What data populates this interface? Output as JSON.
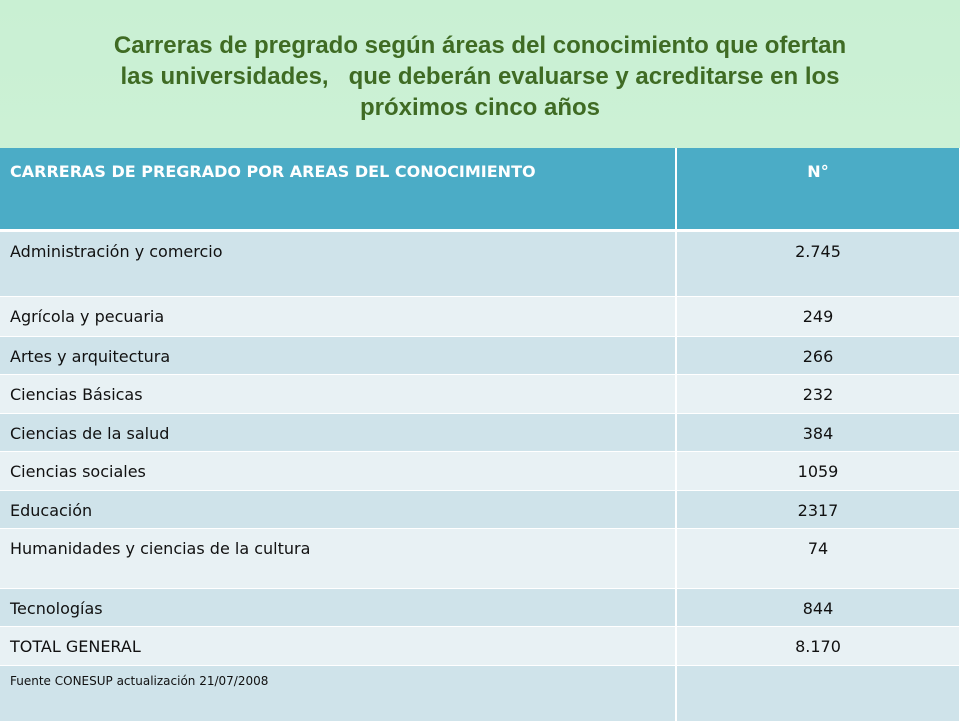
{
  "title": {
    "line1": "Carreras de pregrado según áreas del conocimiento que ofertan",
    "line2": "las universidades,   que deberán evaluarse y acreditarse en los",
    "line3": "próximos cinco años"
  },
  "table": {
    "headers": [
      "CARRERAS DE PREGRADO POR AREAS DEL CONOCIMIENTO",
      "N°"
    ],
    "rows": [
      {
        "area": "Administración y comercio",
        "n": "2.745"
      },
      {
        "area": "Agrícola y pecuaria",
        "n": "249"
      },
      {
        "area": "Artes y arquitectura",
        "n": "266"
      },
      {
        "area": "Ciencias Básicas",
        "n": "232"
      },
      {
        "area": "Ciencias de la salud",
        "n": "384"
      },
      {
        "area": "Ciencias sociales",
        "n": "1059"
      },
      {
        "area": "Educación",
        "n": "2317"
      },
      {
        "area": "Humanidades y ciencias de la cultura",
        "n": "74"
      },
      {
        "area": "Tecnologías",
        "n": "844"
      }
    ],
    "total": {
      "label": "TOTAL GENERAL",
      "n": "8.170"
    },
    "source": "Fuente CONESUP actualización 21/07/2008"
  }
}
